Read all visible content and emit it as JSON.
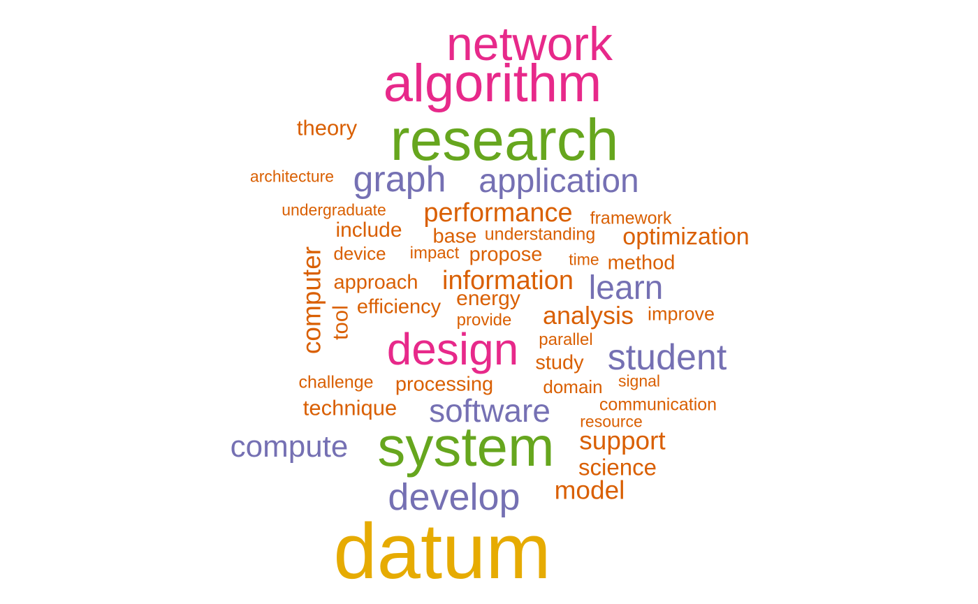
{
  "colors": {
    "magenta": "#e7298a",
    "green": "#66a61e",
    "purple": "#7570b3",
    "orange": "#d95f02",
    "gold": "#e6ab02"
  },
  "words": [
    {
      "text": "network",
      "color": "magenta"
    },
    {
      "text": "algorithm",
      "color": "magenta"
    },
    {
      "text": "research",
      "color": "green"
    },
    {
      "text": "theory",
      "color": "orange"
    },
    {
      "text": "architecture",
      "color": "orange"
    },
    {
      "text": "graph",
      "color": "purple"
    },
    {
      "text": "application",
      "color": "purple"
    },
    {
      "text": "undergraduate",
      "color": "orange"
    },
    {
      "text": "performance",
      "color": "orange"
    },
    {
      "text": "framework",
      "color": "orange"
    },
    {
      "text": "include",
      "color": "orange"
    },
    {
      "text": "base",
      "color": "orange"
    },
    {
      "text": "understanding",
      "color": "orange"
    },
    {
      "text": "optimization",
      "color": "orange"
    },
    {
      "text": "device",
      "color": "orange"
    },
    {
      "text": "impact",
      "color": "orange"
    },
    {
      "text": "propose",
      "color": "orange"
    },
    {
      "text": "time",
      "color": "orange"
    },
    {
      "text": "method",
      "color": "orange"
    },
    {
      "text": "computer",
      "color": "orange"
    },
    {
      "text": "approach",
      "color": "orange"
    },
    {
      "text": "information",
      "color": "orange"
    },
    {
      "text": "learn",
      "color": "purple"
    },
    {
      "text": "tool",
      "color": "orange"
    },
    {
      "text": "efficiency",
      "color": "orange"
    },
    {
      "text": "energy",
      "color": "orange"
    },
    {
      "text": "analysis",
      "color": "orange"
    },
    {
      "text": "improve",
      "color": "orange"
    },
    {
      "text": "provide",
      "color": "orange"
    },
    {
      "text": "parallel",
      "color": "orange"
    },
    {
      "text": "design",
      "color": "magenta"
    },
    {
      "text": "student",
      "color": "purple"
    },
    {
      "text": "study",
      "color": "orange"
    },
    {
      "text": "challenge",
      "color": "orange"
    },
    {
      "text": "processing",
      "color": "orange"
    },
    {
      "text": "domain",
      "color": "orange"
    },
    {
      "text": "signal",
      "color": "orange"
    },
    {
      "text": "technique",
      "color": "orange"
    },
    {
      "text": "software",
      "color": "purple"
    },
    {
      "text": "communication",
      "color": "orange"
    },
    {
      "text": "resource",
      "color": "orange"
    },
    {
      "text": "compute",
      "color": "purple"
    },
    {
      "text": "system",
      "color": "green"
    },
    {
      "text": "support",
      "color": "orange"
    },
    {
      "text": "science",
      "color": "orange"
    },
    {
      "text": "develop",
      "color": "purple"
    },
    {
      "text": "model",
      "color": "orange"
    },
    {
      "text": "datum",
      "color": "gold"
    }
  ]
}
